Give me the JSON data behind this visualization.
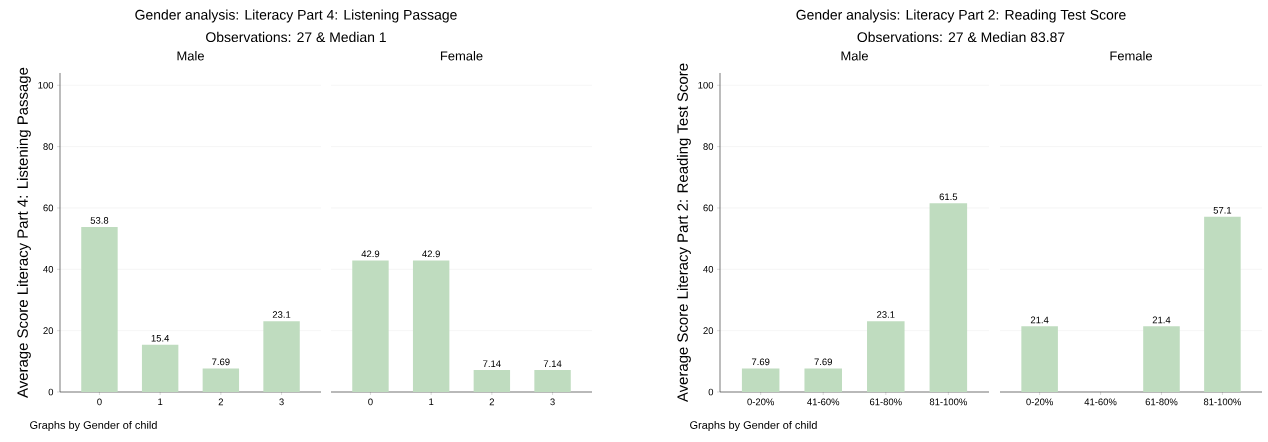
{
  "chart_data": [
    {
      "type": "bar",
      "title": "Male",
      "ylabel": "Average Score Literacy Part 4: Listening Passage",
      "annotations": [
        "Gender analysis: Literacy Part 4: Listening Passage",
        "Observations: 27 & Median 1",
        "Graphs by Gender of child"
      ],
      "categories": [
        "0",
        "1",
        "2",
        "3"
      ],
      "values": [
        53.8,
        15.4,
        7.69,
        23.1
      ],
      "color": "#bfdcbf",
      "ylim": [
        0,
        104
      ],
      "yticks": [
        0,
        20,
        40,
        60,
        80,
        100
      ],
      "grid": "y",
      "data_labels": true
    },
    {
      "type": "bar",
      "title": "Female",
      "categories": [
        "0",
        "1",
        "2",
        "3"
      ],
      "values": [
        42.9,
        42.9,
        7.14,
        7.14
      ],
      "color": "#bfdcbf",
      "ylim": [
        0,
        100
      ],
      "yticks": [
        0,
        20,
        40,
        60,
        80,
        100
      ],
      "grid": "y",
      "data_labels": true,
      "tick_labels": "x"
    },
    {
      "type": "bar",
      "title": "Male",
      "ylabel": "Average Score Literacy Part 2: Reading Test Score",
      "annotations": [
        "Gender analysis: Literacy Part 2: Reading Test Score",
        "Observations: 27 & Median 83.87",
        "Graphs by Gender of child"
      ],
      "categories": [
        "0-20%",
        "41-60%",
        "61-80%",
        "81-100%"
      ],
      "values": [
        7.69,
        7.69,
        23.1,
        61.5
      ],
      "color": "#bfdcbf",
      "ylim": [
        0,
        104
      ],
      "yticks": [
        0,
        20,
        40,
        60,
        80,
        100
      ],
      "grid": "y",
      "data_labels": true
    },
    {
      "type": "bar",
      "title": "Female",
      "categories": [
        "0-20%",
        "41-60%",
        "61-80%",
        "81-100%"
      ],
      "values": [
        21.4,
        null,
        21.4,
        57.1
      ],
      "color": "#bfdcbf",
      "ylim": [
        0,
        100
      ],
      "yticks": [
        0,
        20,
        40,
        60,
        80,
        100
      ],
      "grid": "y",
      "data_labels": true,
      "tick_labels": "x"
    }
  ]
}
